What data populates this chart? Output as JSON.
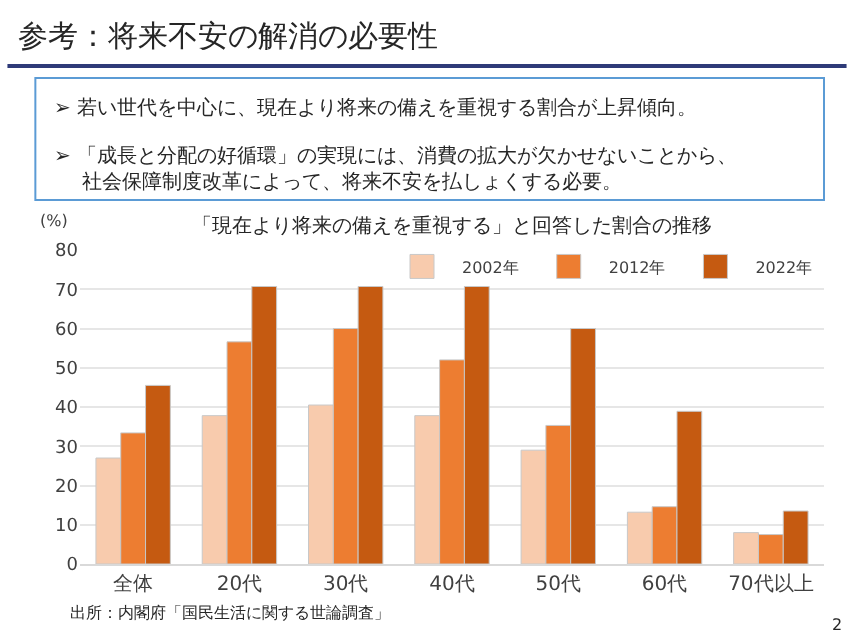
{
  "chart_data": {
    "type": "bar",
    "title": "参考：将来不安の解消の必要性",
    "subtitle": "「現在より将来の備えを重視する」と回答した割合の推移",
    "ylabel": "(%)",
    "categories": [
      "全体",
      "20代",
      "30代",
      "40代",
      "50代",
      "60代",
      "70代以上"
    ],
    "series": [
      {
        "name": "2002年",
        "color": "#f8cbad",
        "values": [
          27,
          37.8,
          40.5,
          37.8,
          29,
          13.2,
          8
        ]
      },
      {
        "name": "2012年",
        "color": "#ed7d31",
        "values": [
          33.4,
          56.6,
          60,
          52,
          35.3,
          14.6,
          7.5
        ]
      },
      {
        "name": "2022年",
        "color": "#c55a11",
        "values": [
          45.5,
          70.7,
          70.7,
          70.7,
          60,
          38.9,
          13.5
        ]
      }
    ],
    "ylim": [
      0,
      80
    ],
    "yticks": [
      0,
      10,
      20,
      30,
      40,
      50,
      60,
      70,
      80
    ],
    "grid": "y",
    "legend": "top right",
    "annotations": [
      "➢ 若い世代を中心に、現在より将来の備えを重視する割合が上昇傾向。",
      "➢ 「成長と分配の好循環」の実現には、消費の拡大が欠かせないことから、",
      "社会保障制度改革によって、将来不安を払しょくする必要。",
      "出所：内閣府「国民生活に関する世論調査」",
      "2"
    ]
  }
}
